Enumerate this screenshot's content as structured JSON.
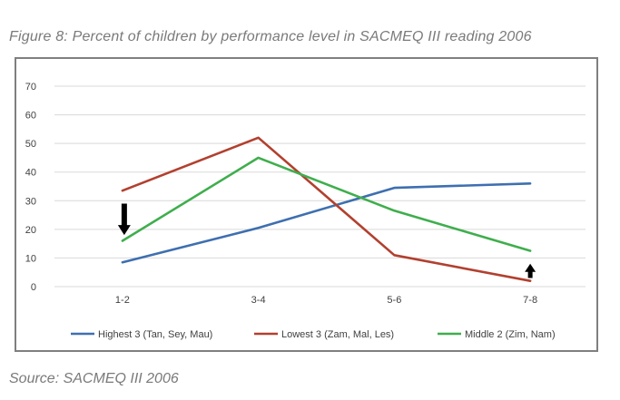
{
  "figure": {
    "caption": "Figure 8: Percent of children by performance level in SACMEQ III reading 2006",
    "source": "Source: SACMEQ III 2006"
  },
  "chart_data": {
    "type": "line",
    "categories": [
      "1-2",
      "3-4",
      "5-6",
      "7-8"
    ],
    "yticks": [
      0,
      10,
      20,
      30,
      40,
      50,
      60,
      70
    ],
    "ylim": [
      0,
      70
    ],
    "grid": true,
    "legend_position": "bottom",
    "series": [
      {
        "name": "Highest 3 (Tan, Sey, Mau)",
        "color": "#3e6fb0",
        "values": [
          8.5,
          20.5,
          34.5,
          36
        ]
      },
      {
        "name": "Lowest 3 (Zam, Mal, Les)",
        "color": "#b2402f",
        "values": [
          33.5,
          52,
          11,
          2
        ]
      },
      {
        "name": "Middle 2 (Zim, Nam)",
        "color": "#3fae4d",
        "values": [
          16,
          45,
          26.5,
          12.5
        ]
      }
    ],
    "annotations": [
      {
        "type": "arrow-down",
        "category": "1-2",
        "from": 29,
        "to": 18,
        "color": "#000000"
      },
      {
        "type": "arrow-up",
        "category": "7-8",
        "from": 3,
        "to": 8,
        "color": "#000000"
      }
    ]
  }
}
